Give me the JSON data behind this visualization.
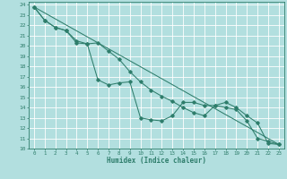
{
  "title": "",
  "xlabel": "Humidex (Indice chaleur)",
  "ylabel": "",
  "xlim": [
    -0.5,
    23.5
  ],
  "ylim": [
    10,
    24.3
  ],
  "xticks": [
    0,
    1,
    2,
    3,
    4,
    5,
    6,
    7,
    8,
    9,
    10,
    11,
    12,
    13,
    14,
    15,
    16,
    17,
    18,
    19,
    20,
    21,
    22,
    23
  ],
  "yticks": [
    10,
    11,
    12,
    13,
    14,
    15,
    16,
    17,
    18,
    19,
    20,
    21,
    22,
    23,
    24
  ],
  "bg_color": "#b2dfdf",
  "grid_color": "#ffffff",
  "line_color": "#2e7d6b",
  "line1_x": [
    0,
    1,
    2,
    3,
    4,
    5,
    6,
    7,
    8,
    9,
    10,
    11,
    12,
    13,
    14,
    15,
    16,
    17,
    18,
    19,
    20,
    21,
    22,
    23
  ],
  "line1_y": [
    23.8,
    22.5,
    21.8,
    21.5,
    20.3,
    20.2,
    16.7,
    16.2,
    16.4,
    16.5,
    13.0,
    12.8,
    12.7,
    13.2,
    14.5,
    14.5,
    14.2,
    14.2,
    14.0,
    13.8,
    12.7,
    11.0,
    10.7,
    10.4
  ],
  "line2_x": [
    0,
    1,
    2,
    3,
    4,
    5,
    6,
    7,
    8,
    9,
    10,
    11,
    12,
    13,
    14,
    15,
    16,
    17,
    18,
    19,
    20,
    21,
    22,
    23
  ],
  "line2_y": [
    23.8,
    22.5,
    21.8,
    21.5,
    20.5,
    20.2,
    20.3,
    19.5,
    18.7,
    17.5,
    16.5,
    15.7,
    15.1,
    14.6,
    14.0,
    13.5,
    13.2,
    14.2,
    14.5,
    14.0,
    13.2,
    12.5,
    10.5,
    10.4
  ],
  "line3_x": [
    0,
    23
  ],
  "line3_y": [
    23.8,
    10.4
  ]
}
